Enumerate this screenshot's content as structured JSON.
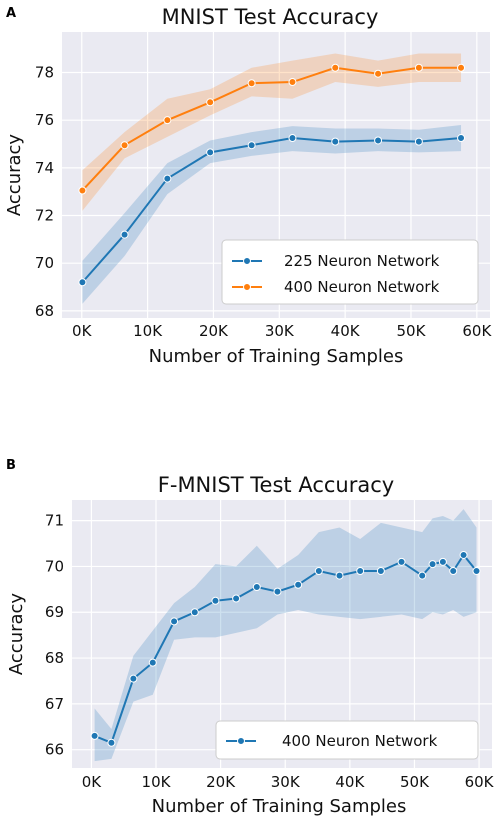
{
  "chart_data": [
    {
      "panel_label": "A",
      "type": "line",
      "title": "MNIST Test Accuracy",
      "xlabel": "Number of Training Samples",
      "ylabel": "Accuracy",
      "xlim": [
        -3000,
        62000
      ],
      "ylim": [
        67.7,
        79.7
      ],
      "xticks": [
        0,
        10000,
        20000,
        30000,
        40000,
        50000,
        60000
      ],
      "xtick_labels": [
        "0K",
        "10K",
        "20K",
        "30K",
        "40K",
        "50K",
        "60K"
      ],
      "yticks": [
        68,
        70,
        72,
        74,
        76,
        78
      ],
      "ytick_labels": [
        "68",
        "70",
        "72",
        "74",
        "76",
        "78"
      ],
      "grid": true,
      "legend_position": "lower-right",
      "x": [
        100,
        6500,
        13000,
        19500,
        25800,
        32000,
        38500,
        45000,
        51200,
        57600
      ],
      "series": [
        {
          "name": "225 Neuron Network",
          "color": "#1f77b4",
          "values": [
            69.2,
            71.2,
            73.55,
            74.65,
            74.95,
            75.25,
            75.1,
            75.15,
            75.1,
            75.25
          ],
          "lower": [
            68.3,
            70.3,
            72.9,
            74.2,
            74.5,
            74.7,
            74.6,
            74.7,
            74.65,
            74.7
          ],
          "upper": [
            70.1,
            72.1,
            74.2,
            75.15,
            75.5,
            75.75,
            75.65,
            75.65,
            75.6,
            75.8
          ]
        },
        {
          "name": "400 Neuron Network",
          "color": "#ff7f0e",
          "values": [
            73.05,
            74.95,
            76.0,
            76.75,
            77.55,
            77.6,
            78.2,
            77.95,
            78.2,
            78.2
          ],
          "lower": [
            72.2,
            74.4,
            75.3,
            76.2,
            77.0,
            76.9,
            77.6,
            77.4,
            77.6,
            77.6
          ],
          "upper": [
            73.9,
            75.5,
            76.9,
            77.3,
            78.2,
            78.5,
            78.8,
            78.5,
            78.8,
            78.8
          ]
        }
      ]
    },
    {
      "panel_label": "B",
      "type": "line",
      "title": "F-MNIST Test Accuracy",
      "xlabel": "Number of Training Samples",
      "ylabel": "Accuracy",
      "xlim": [
        -3000,
        62000
      ],
      "ylim": [
        65.6,
        71.45
      ],
      "xticks": [
        0,
        10000,
        20000,
        30000,
        40000,
        50000,
        60000
      ],
      "xtick_labels": [
        "0K",
        "10K",
        "20K",
        "30K",
        "40K",
        "50K",
        "60K"
      ],
      "yticks": [
        66,
        67,
        68,
        69,
        70,
        71
      ],
      "ytick_labels": [
        "66",
        "67",
        "68",
        "69",
        "70",
        "71"
      ],
      "grid": true,
      "legend_position": "lower-right",
      "x": [
        500,
        3100,
        6500,
        9500,
        12800,
        16000,
        19200,
        22400,
        25600,
        28800,
        32000,
        35200,
        38400,
        41600,
        44800,
        48000,
        51200,
        52800,
        54400,
        56000,
        57600,
        59600
      ],
      "series": [
        {
          "name": "400 Neuron Network",
          "color": "#1f77b4",
          "values": [
            66.3,
            66.15,
            67.55,
            67.9,
            68.8,
            69.0,
            69.25,
            69.3,
            69.55,
            69.45,
            69.6,
            69.9,
            69.8,
            69.9,
            69.9,
            70.1,
            69.8,
            70.05,
            70.1,
            69.9,
            70.25,
            69.9
          ],
          "lower": [
            65.75,
            65.8,
            67.05,
            67.2,
            68.4,
            68.45,
            68.45,
            68.55,
            68.65,
            68.95,
            69.05,
            68.95,
            68.9,
            68.85,
            68.9,
            68.95,
            68.85,
            69.0,
            68.95,
            69.05,
            68.9,
            69.0
          ],
          "upper": [
            66.9,
            66.45,
            68.05,
            68.6,
            69.2,
            69.55,
            70.05,
            70.0,
            70.45,
            69.95,
            70.25,
            70.75,
            70.85,
            70.6,
            70.95,
            70.85,
            70.75,
            71.05,
            71.1,
            71.0,
            71.25,
            70.85
          ]
        }
      ]
    }
  ]
}
